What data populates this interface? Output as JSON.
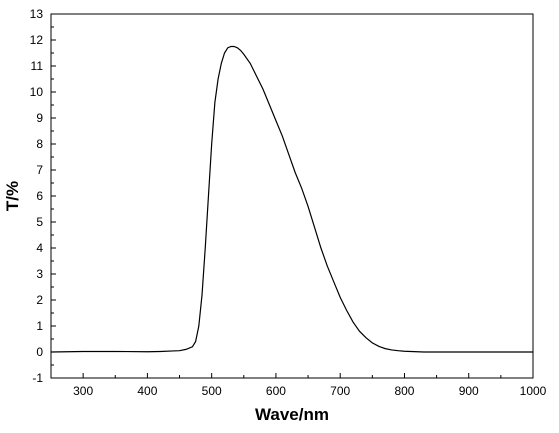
{
  "chart_data": {
    "type": "line",
    "title": "",
    "xlabel": "Wave/nm",
    "ylabel": "T/%",
    "xlim": [
      250,
      1000
    ],
    "ylim": [
      -1,
      13
    ],
    "x_ticks": [
      300,
      400,
      500,
      600,
      700,
      800,
      900,
      1000
    ],
    "y_ticks": [
      -1,
      0,
      1,
      2,
      3,
      4,
      5,
      6,
      7,
      8,
      9,
      10,
      11,
      12,
      13
    ],
    "grid": false,
    "legend": "none",
    "line_color": "#000000",
    "series": [
      {
        "x": [
          250,
          300,
          350,
          400,
          420,
          440,
          450,
          460,
          470,
          475,
          480,
          485,
          490,
          495,
          500,
          505,
          510,
          515,
          520,
          525,
          530,
          535,
          540,
          545,
          550,
          560,
          570,
          580,
          590,
          600,
          610,
          620,
          630,
          640,
          650,
          660,
          670,
          680,
          690,
          700,
          710,
          720,
          730,
          740,
          750,
          760,
          770,
          780,
          790,
          800,
          810,
          820,
          830,
          850,
          900,
          950,
          1000
        ],
        "y": [
          0.0,
          0.02,
          0.02,
          0.01,
          0.02,
          0.04,
          0.05,
          0.1,
          0.2,
          0.4,
          1.0,
          2.2,
          4.0,
          6.0,
          8.0,
          9.6,
          10.5,
          11.1,
          11.5,
          11.7,
          11.75,
          11.75,
          11.7,
          11.6,
          11.45,
          11.1,
          10.6,
          10.1,
          9.5,
          8.9,
          8.3,
          7.6,
          6.9,
          6.3,
          5.6,
          4.8,
          4.0,
          3.3,
          2.7,
          2.1,
          1.6,
          1.15,
          0.8,
          0.55,
          0.35,
          0.22,
          0.13,
          0.08,
          0.05,
          0.03,
          0.02,
          0.01,
          0.0,
          0.0,
          0.0,
          0.0,
          0.0
        ]
      }
    ]
  }
}
